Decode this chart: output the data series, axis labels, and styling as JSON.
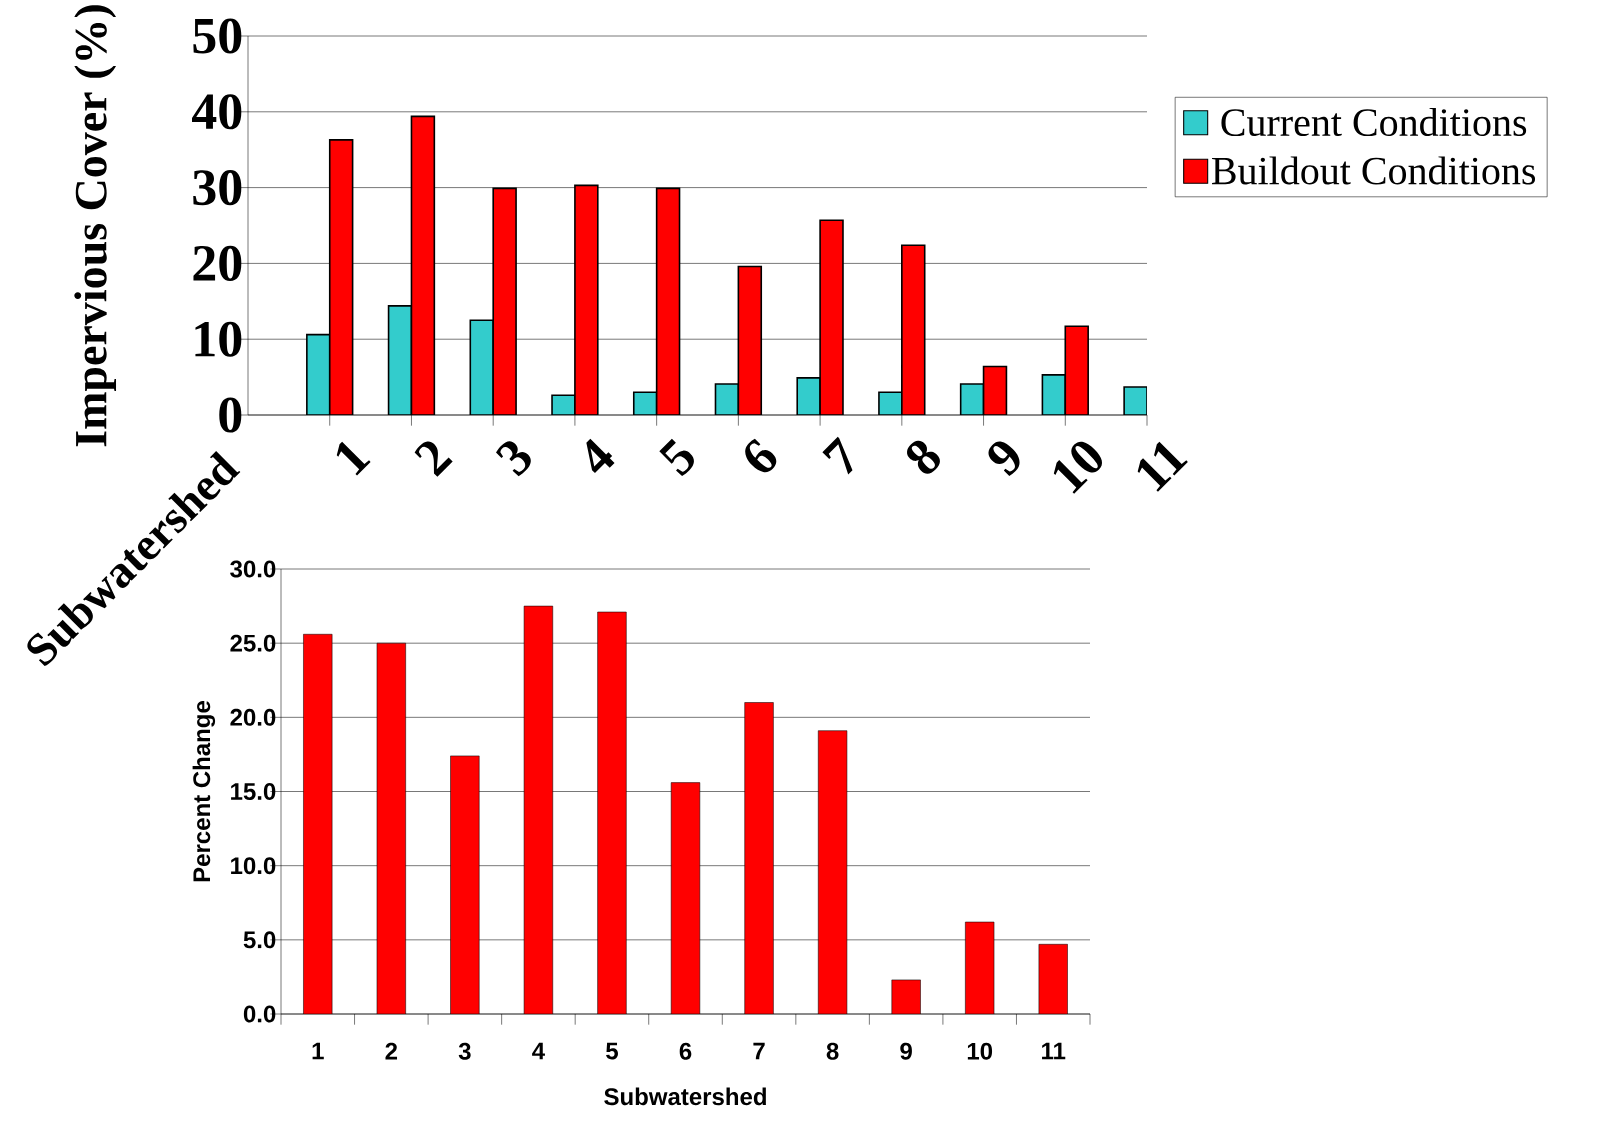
{
  "chart_data": [
    {
      "type": "bar",
      "ylabel": "Impervious Cover (%)",
      "xlabel": "Subwatershed",
      "categories": [
        "1",
        "2",
        "3",
        "4",
        "5",
        "6",
        "7",
        "8",
        "9",
        "10",
        "11"
      ],
      "series": [
        {
          "name": "Current Conditions",
          "color": "#33cccc",
          "values": [
            10.6,
            14.4,
            12.5,
            2.6,
            3.0,
            4.1,
            4.9,
            3.0,
            4.1,
            5.3,
            3.7
          ]
        },
        {
          "name": "Buildout Conditions",
          "color": "#ff0000",
          "values": [
            36.3,
            39.4,
            29.9,
            30.3,
            29.9,
            19.6,
            25.7,
            22.4,
            6.4,
            11.7,
            null
          ]
        }
      ],
      "ylim": [
        0,
        50
      ],
      "yticks": [
        0,
        10,
        20,
        30,
        40,
        50
      ],
      "grid": "y",
      "legend": "right"
    },
    {
      "type": "bar",
      "ylabel": "Percent Change",
      "xlabel": "Subwatershed",
      "categories": [
        "1",
        "2",
        "3",
        "4",
        "5",
        "6",
        "7",
        "8",
        "9",
        "10",
        "11"
      ],
      "series": [
        {
          "color": "#ff0000",
          "values": [
            25.6,
            25.0,
            17.4,
            27.5,
            27.1,
            15.6,
            21.0,
            19.1,
            2.3,
            6.2,
            4.7
          ]
        }
      ],
      "ylim": [
        0,
        30
      ],
      "yticks": [
        {
          "value": 0,
          "label": "0.0"
        },
        {
          "value": 5,
          "label": "5.0"
        },
        {
          "value": 10,
          "label": "10.0"
        },
        {
          "value": 15,
          "label": "15.0"
        },
        {
          "value": 20,
          "label": "20.0"
        },
        {
          "value": 25,
          "label": "25.0"
        },
        {
          "value": 30,
          "label": "30.0"
        }
      ],
      "grid": "y"
    }
  ]
}
